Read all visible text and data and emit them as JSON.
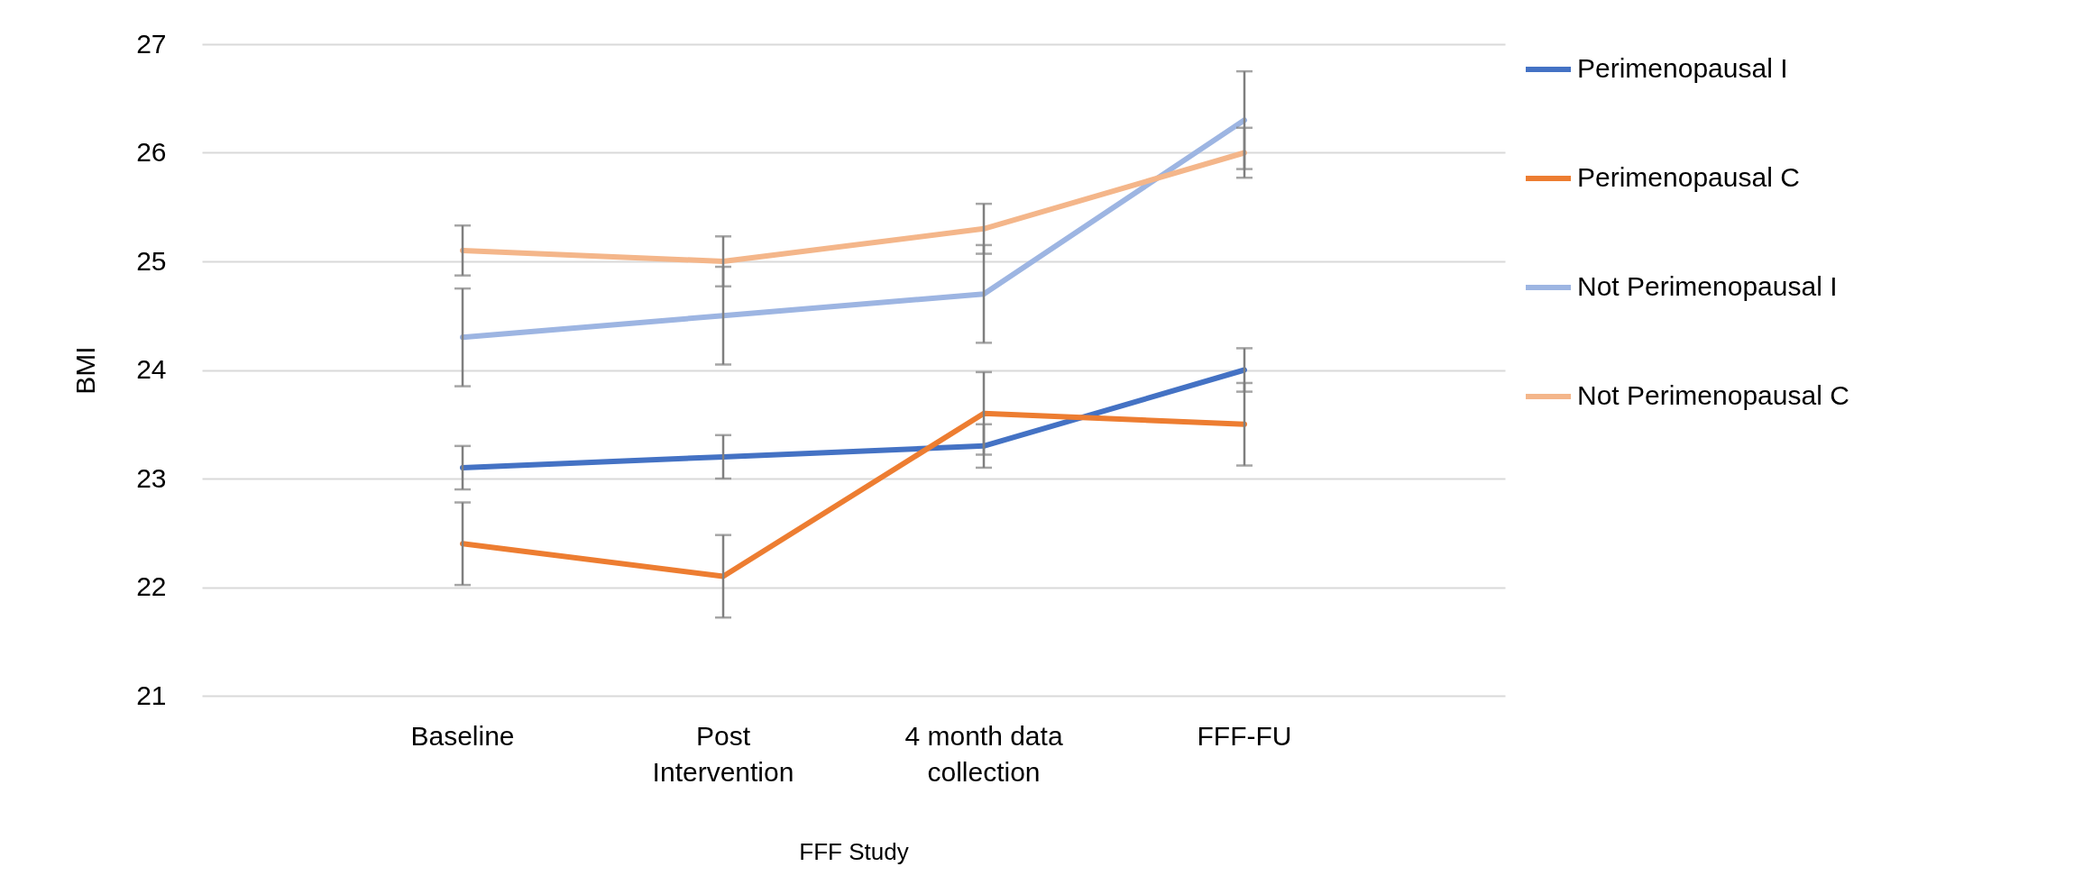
{
  "chart_data": {
    "type": "line",
    "xlabel": "FFF Study",
    "ylabel": "BMI",
    "categories": [
      "Baseline",
      "Post Intervention",
      "4 month data collection",
      "FFF-FU"
    ],
    "series": [
      {
        "name": "Perimenopausal I",
        "color": "#4472c4",
        "values": [
          23.1,
          23.2,
          23.3,
          24.0
        ],
        "errors": [
          0.2,
          0.2,
          0.2,
          0.2
        ]
      },
      {
        "name": "Perimenopausal C",
        "color": "#ed7d31",
        "values": [
          22.4,
          22.1,
          23.6,
          23.5
        ],
        "errors": [
          0.38,
          0.38,
          0.38,
          0.38
        ]
      },
      {
        "name": "Not Perimenopausal I",
        "color": "#9db5e2",
        "values": [
          24.3,
          24.5,
          24.7,
          26.3
        ],
        "errors": [
          0.45,
          0.45,
          0.45,
          0.45
        ]
      },
      {
        "name": "Not Perimenopausal C",
        "color": "#f4b68a",
        "values": [
          25.1,
          25.0,
          25.3,
          26.0
        ],
        "errors": [
          0.23,
          0.23,
          0.23,
          0.23
        ]
      }
    ],
    "ylim": [
      21,
      27
    ],
    "yticks": [
      21,
      22,
      23,
      24,
      25,
      26,
      27
    ],
    "grid": "y",
    "legend": "right",
    "marker": "none",
    "line_style": "solid"
  }
}
